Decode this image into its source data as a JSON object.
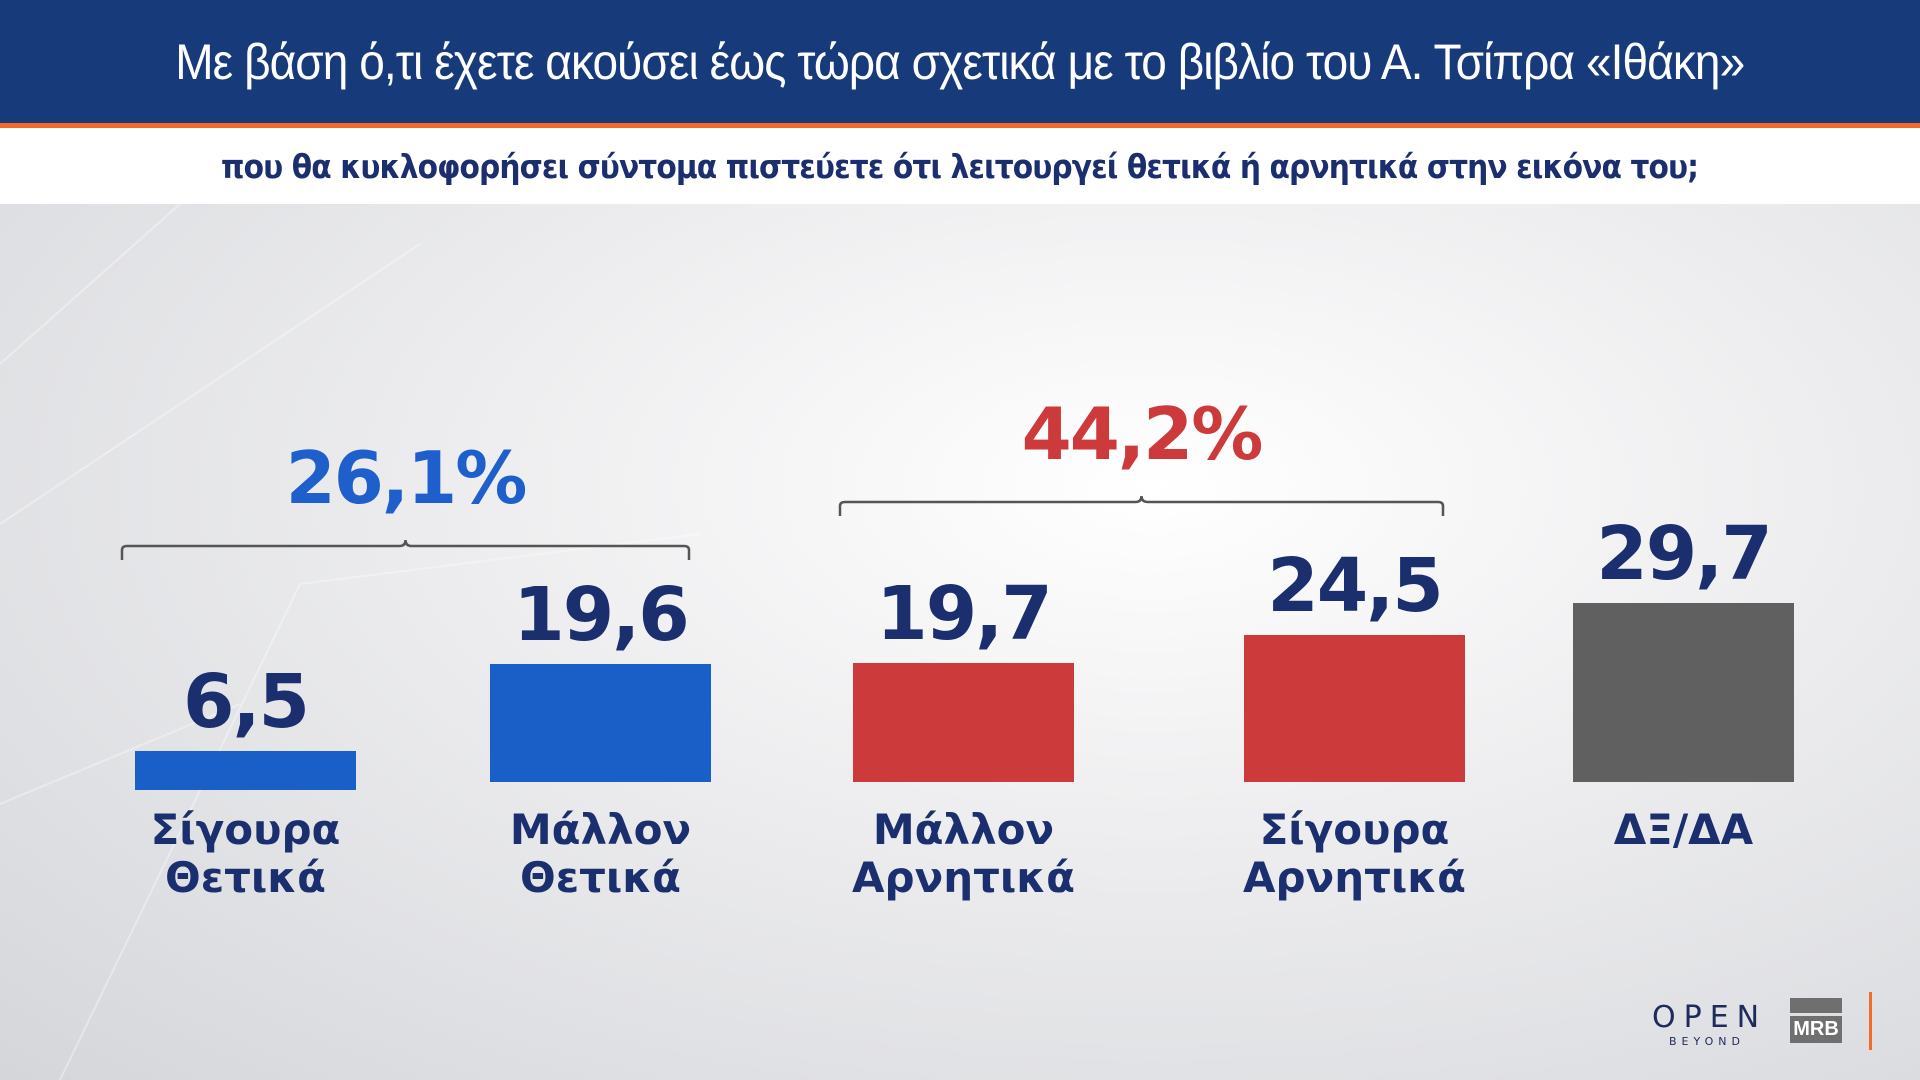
{
  "header": {
    "title": "Με βάση ό,τι έχετε ακούσει έως τώρα σχετικά με το βιβλίο του Α. Τσίπρα «Ιθάκη»",
    "subtitle": "που θα κυκλοφορήσει σύντομα πιστεύετε ότι λειτουργεί θετικά ή αρνητικά στην εικόνα του;"
  },
  "chart_data": {
    "type": "bar",
    "title": "Με βάση ό,τι έχετε ακούσει έως τώρα σχετικά με το βιβλίο του Α. Τσίπρα «Ιθάκη» που θα κυκλοφορήσει σύντομα πιστεύετε ότι λειτουργεί θετικά ή αρνητικά στην εικόνα του;",
    "categories": [
      "Σίγουρα\nΘετικά",
      "Μάλλον\nΘετικά",
      "Μάλλον\nΑρνητικά",
      "Σίγουρα\nΑρνητικά",
      "ΔΞ/ΔΑ"
    ],
    "values": [
      6.5,
      19.6,
      19.7,
      24.5,
      29.7
    ],
    "value_labels": [
      "6,5",
      "19,6",
      "19,7",
      "24,5",
      "29,7"
    ],
    "colors": [
      "#1a5fc8",
      "#1a5fc8",
      "#cc3a3c",
      "#cc3a3c",
      "#606060"
    ],
    "groups": [
      {
        "label": "26,1%",
        "members": [
          0,
          1
        ],
        "color": "#1f5fcc"
      },
      {
        "label": "44,2%",
        "members": [
          2,
          3
        ],
        "color": "#cc3a3c"
      }
    ],
    "grid": false,
    "xlabel": "",
    "ylabel": ""
  },
  "logos": {
    "open": "OPEN",
    "open_sub": "BEYOND",
    "mrb": "MRB"
  },
  "colors": {
    "header": "#173a7a",
    "accent": "#f26b2a",
    "text": "#1b2f6e"
  }
}
